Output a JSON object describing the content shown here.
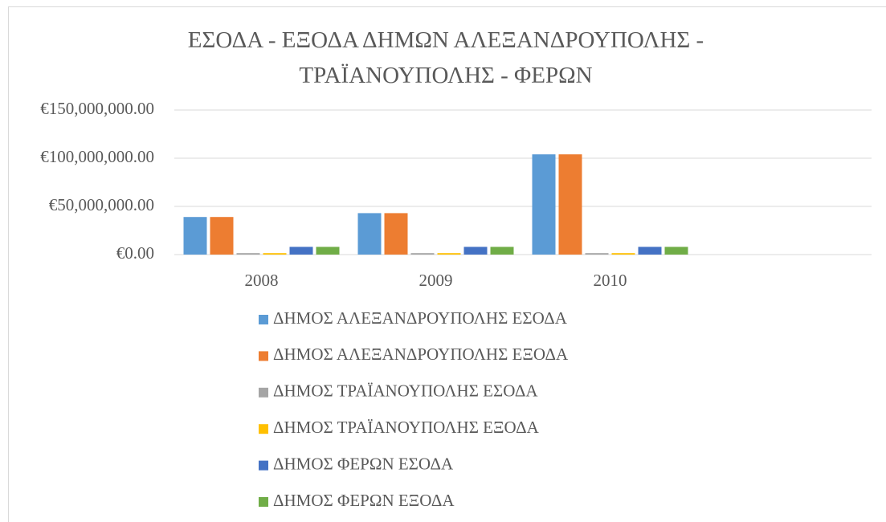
{
  "chart_data": {
    "type": "bar",
    "title": "ΕΣΟΔΑ - ΕΞΟΔΑ ΔΗΜΩΝ ΑΛΕΞΑΝΔΡΟΥΠΟΛΗΣ - ΤΡΑΪΑΝΟΥΠΟΛΗΣ - ΦΕΡΩΝ",
    "categories": [
      "2008",
      "2009",
      "2010",
      null
    ],
    "series": [
      {
        "name": "ΔΗΜΟΣ ΑΛΕΞΑΝΔΡΟΥΠΟΛΗΣ ΕΣΟΔΑ",
        "color": "#5b9bd5",
        "values": [
          39000000,
          43000000,
          104000000,
          null
        ]
      },
      {
        "name": "ΔΗΜΟΣ ΑΛΕΞΑΝΔΡΟΥΠΟΛΗΣ ΕΞΟΔΑ",
        "color": "#ed7d31",
        "values": [
          39000000,
          43000000,
          104000000,
          null
        ]
      },
      {
        "name": "ΔΗΜΟΣ ΤΡΑΪΑΝΟΥΠΟΛΗΣ ΕΣΟΔΑ",
        "color": "#a5a5a5",
        "values": [
          1500000,
          1500000,
          1500000,
          null
        ]
      },
      {
        "name": "ΔΗΜΟΣ ΤΡΑΪΑΝΟΥΠΟΛΗΣ ΕΞΟΔΑ",
        "color": "#ffc000",
        "values": [
          1500000,
          1500000,
          1500000,
          null
        ]
      },
      {
        "name": "ΔΗΜΟΣ ΦΕΡΩΝ ΕΣΟΔΑ",
        "color": "#4472c4",
        "values": [
          8000000,
          8000000,
          8000000,
          null
        ]
      },
      {
        "name": "ΔΗΜΟΣ ΦΕΡΩΝ ΕΞΟΔΑ",
        "color": "#70ad47",
        "values": [
          8000000,
          8000000,
          8000000,
          null
        ]
      }
    ],
    "ylim": [
      0,
      150000000
    ],
    "yticks": [
      {
        "value": 0,
        "label": "€0.00"
      },
      {
        "value": 50000000,
        "label": "€50,000,000.00"
      },
      {
        "value": 100000000,
        "label": "€100,000,000.00"
      },
      {
        "value": 150000000,
        "label": "€150,000,000.00"
      }
    ],
    "grid": true,
    "legend": "bottom"
  }
}
